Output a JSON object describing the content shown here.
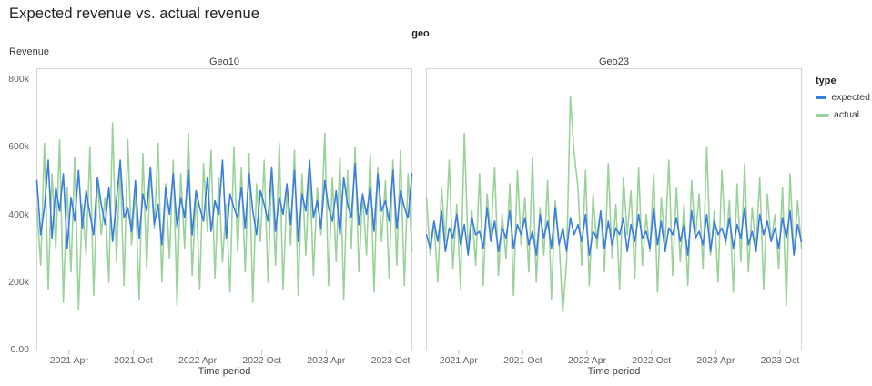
{
  "chart_data": {
    "type": "line",
    "title": "Expected revenue vs. actual revenue",
    "facet_field": "geo",
    "value_unit": "thousands",
    "x": {
      "label": "Time period",
      "start": "2021-01",
      "end": "2023-12",
      "months_span": 36,
      "ticks": [
        "2021 Apr",
        "2021 Oct",
        "2022 Apr",
        "2022 Oct",
        "2023 Apr",
        "2023 Oct"
      ],
      "tick_month_index": [
        3,
        9,
        15,
        21,
        27,
        33
      ]
    },
    "y": {
      "label": "Revenue",
      "min": 0,
      "max": 800,
      "ticks": [
        "800k",
        "600k",
        "400k",
        "200k",
        "0.00"
      ],
      "tick_values": [
        800,
        600,
        400,
        200,
        0
      ]
    },
    "legend": {
      "title": "type",
      "entries": [
        {
          "label": "expected",
          "color": "#3b7de0"
        },
        {
          "label": "actual",
          "color": "#9bd29b"
        }
      ]
    },
    "facets": [
      {
        "name": "Geo10",
        "series": [
          {
            "name": "expected",
            "color": "#3b7de0",
            "values": [
              500,
              340,
              420,
              560,
              330,
              480,
              410,
              520,
              300,
              450,
              380,
              530,
              360,
              470,
              400,
              340,
              510,
              430,
              370,
              480,
              320,
              440,
              560,
              390,
              420,
              350,
              500,
              330,
              460,
              410,
              540,
              370,
              430,
              310,
              480,
              400,
              520,
              360,
              450,
              390,
              530,
              340,
              470,
              420,
              380,
              510,
              350,
              440,
              400,
              560,
              330,
              460,
              420,
              390,
              480,
              360,
              520,
              410,
              340,
              470,
              430,
              380,
              540,
              350,
              450,
              400,
              490,
              370,
              530,
              320,
              460,
              410,
              560,
              390,
              440,
              360,
              500,
              420,
              380,
              470,
              340,
              510,
              430,
              390,
              550,
              370,
              460,
              400,
              480,
              350,
              520,
              410,
              440,
              380,
              530,
              360,
              470,
              420,
              390,
              520
            ]
          },
          {
            "name": "actual",
            "color": "#9bd29b",
            "values": [
              420,
              250,
              610,
              180,
              520,
              300,
              620,
              140,
              480,
              230,
              570,
              120,
              430,
              280,
              600,
              160,
              510,
              340,
              450,
              200,
              670,
              260,
              540,
              190,
              620,
              310,
              470,
              150,
              580,
              240,
              530,
              360,
              610,
              200,
              490,
              270,
              560,
              130,
              520,
              300,
              640,
              220,
              470,
              180,
              550,
              350,
              590,
              210,
              510,
              260,
              430,
              170,
              600,
              290,
              540,
              230,
              580,
              140,
              490,
              320,
              560,
              200,
              530,
              250,
              610,
              180,
              470,
              310,
              590,
              160,
              520,
              280,
              550,
              220,
              480,
              340,
              640,
              190,
              510,
              260,
              570,
              150,
              530,
              300,
              600,
              230,
              460,
              280,
              580,
              170,
              540,
              320,
              500,
              210,
              560,
              250,
              590,
              190,
              520,
              290
            ]
          }
        ]
      },
      {
        "name": "Geo23",
        "series": [
          {
            "name": "expected",
            "color": "#3b7de0",
            "values": [
              340,
              300,
              380,
              320,
              410,
              290,
              360,
              330,
              400,
              310,
              370,
              280,
              390,
              340,
              350,
              300,
              420,
              320,
              380,
              290,
              360,
              330,
              410,
              300,
              370,
              340,
              390,
              310,
              350,
              280,
              400,
              330,
              380,
              300,
              420,
              310,
              360,
              290,
              390,
              340,
              370,
              320,
              400,
              280,
              350,
              330,
              410,
              300,
              380,
              310,
              360,
              340,
              390,
              290,
              370,
              320,
              400,
              330,
              350,
              300,
              420,
              310,
              380,
              290,
              360,
              340,
              390,
              320,
              370,
              280,
              410,
              330,
              350,
              310,
              400,
              290,
              380,
              340,
              360,
              320,
              390,
              300,
              370,
              330,
              420,
              310,
              350,
              290,
              400,
              340,
              380,
              320,
              360,
              300,
              390,
              330,
              410,
              280,
              370,
              320
            ]
          },
          {
            "name": "actual",
            "color": "#9bd29b",
            "values": [
              450,
              280,
              380,
              200,
              480,
              320,
              560,
              240,
              430,
              180,
              640,
              300,
              410,
              250,
              520,
              190,
              460,
              330,
              540,
              220,
              400,
              270,
              490,
              160,
              530,
              310,
              450,
              230,
              570,
              200,
              420,
              280,
              500,
              150,
              440,
              320,
              110,
              260,
              750,
              580,
              480,
              250,
              530,
              190,
              460,
              300,
              410,
              230,
              550,
              270,
              430,
              180,
              510,
              340,
              470,
              210,
              540,
              250,
              400,
              290,
              520,
              170,
              450,
              310,
              560,
              220,
              480,
              260,
              430,
              190,
              500,
              330,
              460,
              240,
              600,
              280,
              410,
              200,
              530,
              310,
              440,
              170,
              490,
              260,
              550,
              230,
              420,
              300,
              510,
              180,
              460,
              320,
              400,
              240,
              480,
              130,
              520,
              280,
              440,
              300
            ]
          }
        ]
      }
    ]
  }
}
